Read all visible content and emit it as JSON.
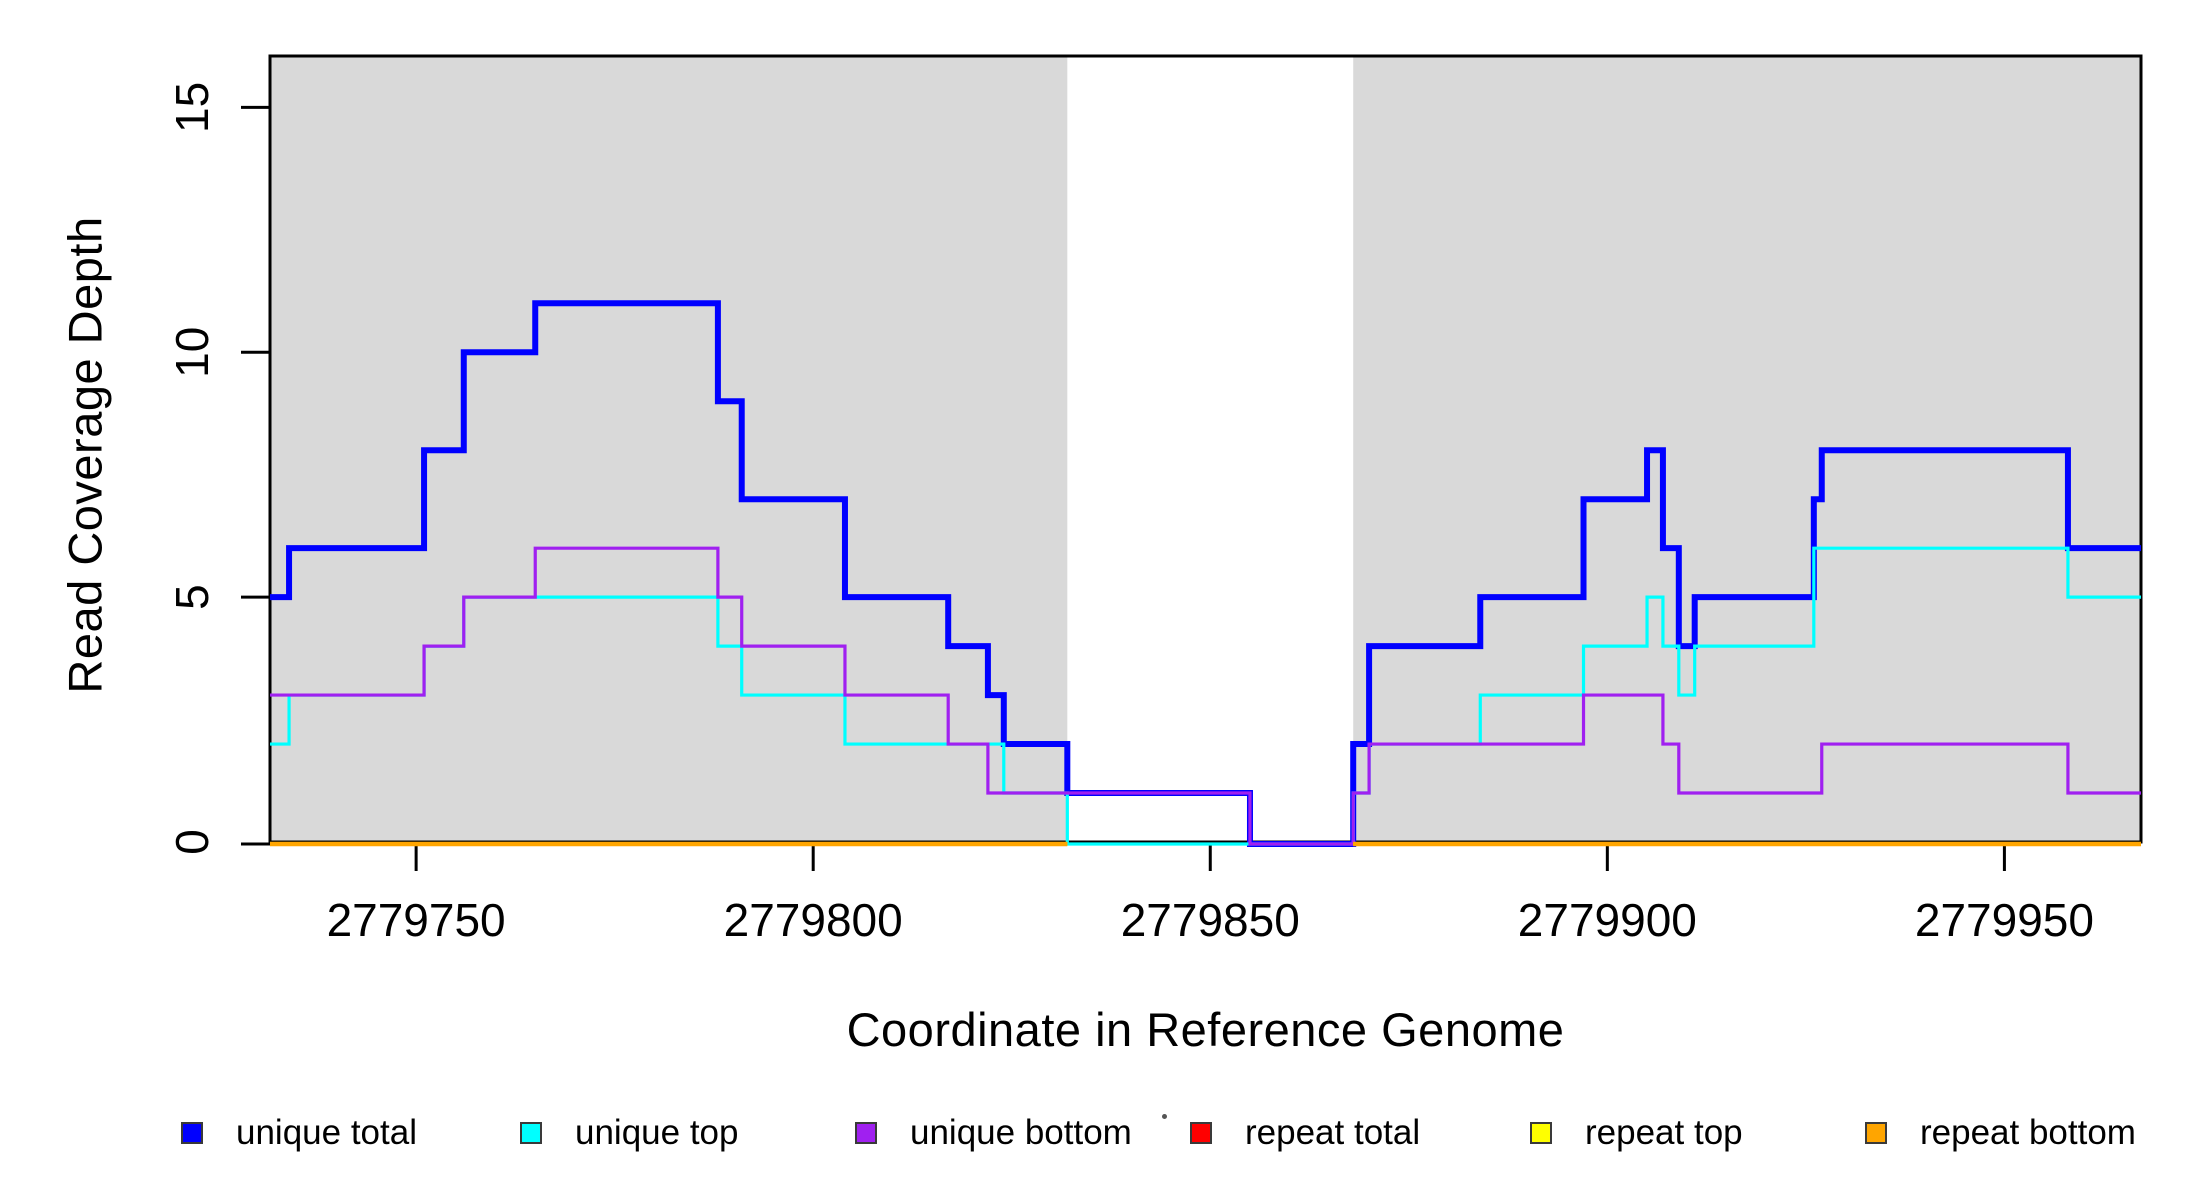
{
  "figure": {
    "xlabel": "Coordinate in Reference Genome",
    "ylabel": "Read Coverage Depth"
  },
  "axes": {
    "x_tick_labels": [
      "2779750",
      "2779800",
      "2779850",
      "2779900",
      "2779950"
    ],
    "y_tick_labels": [
      "0",
      "5",
      "10",
      "15"
    ]
  },
  "legend": {
    "items": [
      {
        "label": "unique total",
        "color": "#0000FF"
      },
      {
        "label": "unique top",
        "color": "#00FFFF"
      },
      {
        "label": "unique bottom",
        "color": "#A020F0"
      },
      {
        "label": "repeat total",
        "color": "#FF0000"
      },
      {
        "label": "repeat top",
        "color": "#FFFF00"
      },
      {
        "label": "repeat bottom",
        "color": "#FFA500"
      }
    ]
  },
  "chart_data": {
    "type": "line",
    "subtype": "step",
    "title": "",
    "xlabel": "Coordinate in Reference Genome",
    "ylabel": "Read Coverage Depth",
    "xlim": [
      2779731.6,
      2779967.2
    ],
    "ylim": [
      0,
      16.05
    ],
    "x_tick_values": [
      2779750,
      2779800,
      2779850,
      2779900,
      2779950
    ],
    "y_tick_values": [
      0,
      5,
      10,
      15
    ],
    "grid": false,
    "legend_position": "bottom",
    "background_shading": {
      "color": "#D9D9D9",
      "regions": [
        [
          2779731.6,
          2779832
        ],
        [
          2779868,
          2779967.2
        ]
      ]
    },
    "x_breaks": [
      2779731.6,
      2779734,
      2779751,
      2779756,
      2779765,
      2779788,
      2779791,
      2779804,
      2779817,
      2779822,
      2779824,
      2779832,
      2779855,
      2779868,
      2779870,
      2779884,
      2779897,
      2779905,
      2779907,
      2779909,
      2779911,
      2779926,
      2779927,
      2779958,
      2779967.2
    ],
    "series": [
      {
        "name": "unique total",
        "color": "#0000FF",
        "line_width": 6,
        "clip_to_shaded": false,
        "values": [
          5,
          6,
          8,
          10,
          11,
          9,
          7,
          5,
          4,
          3,
          2,
          1,
          0,
          2,
          4,
          5,
          7,
          8,
          6,
          4,
          5,
          7,
          8,
          6
        ]
      },
      {
        "name": "unique top",
        "color": "#00FFFF",
        "line_width": 3.2,
        "clip_to_shaded": false,
        "values": [
          2,
          3,
          4,
          5,
          5,
          4,
          3,
          2,
          2,
          2,
          1,
          0,
          0,
          1,
          2,
          3,
          4,
          5,
          4,
          3,
          4,
          6,
          6,
          5
        ]
      },
      {
        "name": "unique bottom",
        "color": "#A020F0",
        "line_width": 3.2,
        "clip_to_shaded": false,
        "values": [
          3,
          3,
          4,
          5,
          6,
          5,
          4,
          3,
          2,
          1,
          1,
          1,
          0,
          1,
          2,
          2,
          3,
          3,
          2,
          1,
          1,
          1,
          2,
          1
        ]
      },
      {
        "name": "repeat total",
        "color": "#FF0000",
        "line_width": 3.2,
        "clip_to_shaded": true,
        "values": [
          0,
          0,
          0,
          0,
          0,
          0,
          0,
          0,
          0,
          0,
          0,
          0,
          0,
          0,
          0,
          0,
          0,
          0,
          0,
          0,
          0,
          0,
          0,
          0
        ]
      },
      {
        "name": "repeat top",
        "color": "#FFFF00",
        "line_width": 3.2,
        "clip_to_shaded": true,
        "values": [
          0,
          0,
          0,
          0,
          0,
          0,
          0,
          0,
          0,
          0,
          0,
          0,
          0,
          0,
          0,
          0,
          0,
          0,
          0,
          0,
          0,
          0,
          0,
          0
        ]
      },
      {
        "name": "repeat bottom",
        "color": "#FFA500",
        "line_width": 4.5,
        "clip_to_shaded": true,
        "values": [
          0,
          0,
          0,
          0,
          0,
          0,
          0,
          0,
          0,
          0,
          0,
          0,
          0,
          0,
          0,
          0,
          0,
          0,
          0,
          0,
          0,
          0,
          0,
          0
        ]
      }
    ]
  }
}
